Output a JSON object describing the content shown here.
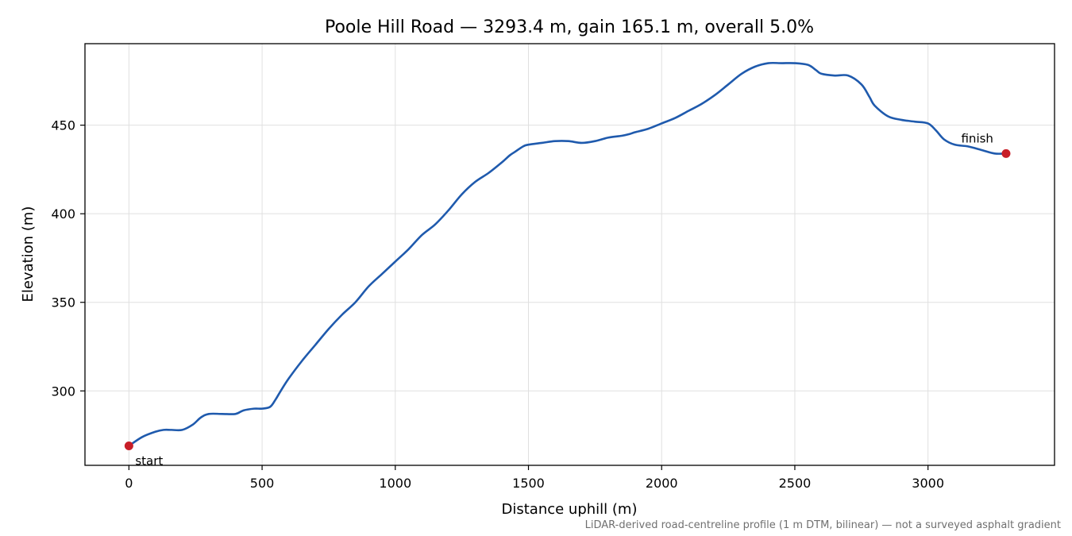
{
  "chart_data": {
    "type": "line",
    "title": "Poole Hill Road — 3293.4 m, gain 165.1 m, overall 5.0%",
    "xlabel": "Distance uphill (m)",
    "ylabel": "Elevation (m)",
    "xlim": [
      -165,
      3475
    ],
    "ylim": [
      258,
      496
    ],
    "xticks": [
      0,
      500,
      1000,
      1500,
      2000,
      2500,
      3000
    ],
    "yticks": [
      300,
      350,
      400,
      450
    ],
    "grid": true,
    "colors": {
      "line": "#1f5aad",
      "marker": "#c81e28",
      "grid": "#e0e0e0",
      "footnote": "#707070"
    },
    "series": [
      {
        "x": [
          0,
          50,
          100,
          130,
          160,
          200,
          240,
          270,
          300,
          350,
          400,
          430,
          470,
          500,
          530,
          550,
          570,
          600,
          650,
          700,
          750,
          800,
          850,
          900,
          950,
          1000,
          1050,
          1100,
          1150,
          1200,
          1250,
          1300,
          1350,
          1400,
          1430,
          1450,
          1480,
          1500,
          1550,
          1600,
          1650,
          1700,
          1750,
          1800,
          1850,
          1880,
          1900,
          1950,
          2000,
          2050,
          2100,
          2150,
          2200,
          2250,
          2300,
          2350,
          2400,
          2450,
          2500,
          2550,
          2580,
          2600,
          2650,
          2700,
          2750,
          2780,
          2800,
          2850,
          2900,
          2950,
          3000,
          3030,
          3060,
          3100,
          3150,
          3200,
          3250,
          3293
        ],
        "values": [
          269,
          274,
          277,
          278,
          278,
          278,
          281,
          285,
          287,
          287,
          287,
          289,
          290,
          290,
          291,
          295,
          300,
          307,
          317,
          326,
          335,
          343,
          350,
          359,
          366,
          373,
          380,
          388,
          394,
          402,
          411,
          418,
          423,
          429,
          433,
          435,
          438,
          439,
          440,
          441,
          441,
          440,
          441,
          443,
          444,
          445,
          446,
          448,
          451,
          454,
          458,
          462,
          467,
          473,
          479,
          483,
          485,
          485,
          485,
          484,
          481,
          479,
          478,
          478,
          473,
          466,
          461,
          455,
          453,
          452,
          451,
          447,
          442,
          439,
          438,
          436,
          434,
          434
        ]
      }
    ],
    "annotations": [
      {
        "label": "start",
        "x": 0,
        "y": 269
      },
      {
        "label": "finish",
        "x": 3293,
        "y": 434
      }
    ],
    "footnote": "LiDAR-derived road-centreline profile (1 m DTM, bilinear) — not a surveyed asphalt gradient"
  }
}
